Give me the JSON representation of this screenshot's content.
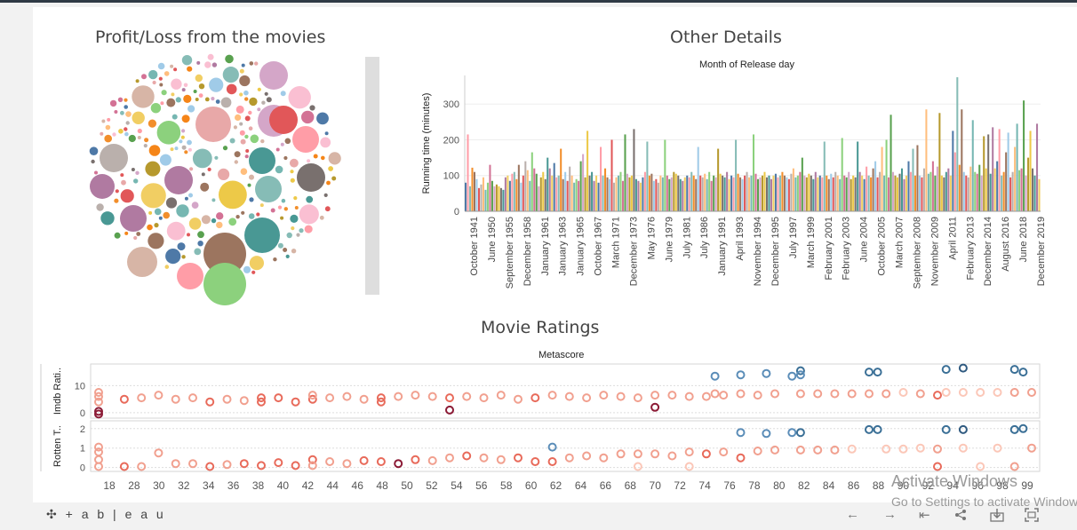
{
  "dashboard": {
    "bubble_title": "Profit/Loss from the movies",
    "details_title": "Other Details",
    "ratings_title": "Movie Ratings"
  },
  "chart_data": [
    {
      "type": "scatter",
      "title": "Profit/Loss from the movies",
      "subtitle": "",
      "note": "packed bubble chart; individual values unlabeled",
      "palette": [
        "#f28e2b",
        "#4e79a7",
        "#e15759",
        "#76b7b2",
        "#59a14f",
        "#edc948",
        "#b07aa1",
        "#ff9da7",
        "#9c755f",
        "#bab0ac",
        "#8cd17d",
        "#d4a6c8",
        "#79706e",
        "#f1ce63",
        "#86bcb6",
        "#a0cbe8",
        "#ffbe7d",
        "#d37295",
        "#b6992d",
        "#499894",
        "#d7b5a6",
        "#fabfd2",
        "#e8a8a8",
        "#f58518"
      ]
    },
    {
      "type": "bar",
      "title": "Month of Release day",
      "ylabel": "Running time (minutes)",
      "ylim": [
        0,
        380
      ],
      "yticks": [
        0,
        100,
        200,
        300
      ],
      "x_tick_labels": [
        "October 1941",
        "June 1950",
        "September 1955",
        "December 1958",
        "January 1961",
        "January 1963",
        "January 1965",
        "October 1967",
        "March 1971",
        "December 1973",
        "May 1976",
        "June 1979",
        "July 1981",
        "July 1986",
        "January 1991",
        "April 1993",
        "November 1994",
        "December 1995",
        "July 1997",
        "March 1999",
        "February 2001",
        "February 2003",
        "June 2004",
        "October 2005",
        "March 2007",
        "September 2008",
        "November 2009",
        "April 2011",
        "February 2013",
        "December 2014",
        "August 2016",
        "June 2018",
        "December 2019"
      ],
      "bar_values": [
        80,
        215,
        70,
        122,
        110,
        90,
        65,
        75,
        95,
        60,
        80,
        130,
        85,
        70,
        75,
        70,
        65,
        60,
        95,
        100,
        85,
        105,
        110,
        90,
        130,
        80,
        100,
        140,
        115,
        85,
        165,
        120,
        105,
        70,
        95,
        110,
        90,
        150,
        120,
        100,
        135,
        95,
        100,
        175,
        90,
        110,
        85,
        125,
        100,
        80,
        90,
        85,
        140,
        160,
        95,
        225,
        100,
        110,
        85,
        100,
        80,
        180,
        100,
        120,
        95,
        90,
        200,
        80,
        95,
        100,
        110,
        85,
        215,
        105,
        95,
        100,
        230,
        90,
        85,
        80,
        95,
        110,
        195,
        100,
        105,
        85,
        90,
        80,
        100,
        95,
        200,
        100,
        90,
        95,
        110,
        105,
        100,
        90,
        85,
        95,
        100,
        95,
        110,
        100,
        90,
        180,
        100,
        95,
        105,
        90,
        110,
        85,
        100,
        95,
        175,
        105,
        100,
        95,
        110,
        90,
        100,
        95,
        200,
        105,
        95,
        90,
        100,
        110,
        95,
        100,
        215,
        105,
        90,
        95,
        100,
        110,
        95,
        100,
        90,
        100,
        105,
        95,
        100,
        110,
        100,
        95,
        90,
        105,
        120,
        95,
        100,
        110,
        150,
        100,
        95,
        105,
        100,
        90,
        110,
        95,
        100,
        95,
        195,
        100,
        90,
        105,
        95,
        110,
        100,
        90,
        205,
        100,
        95,
        110,
        90,
        100,
        95,
        195,
        110,
        100,
        90,
        125,
        100,
        95,
        120,
        140,
        95,
        110,
        180,
        100,
        200,
        95,
        270,
        110,
        100,
        95,
        105,
        120,
        90,
        100,
        140,
        110,
        175,
        100,
        185,
        100,
        95,
        120,
        285,
        105,
        110,
        140,
        100,
        125,
        275,
        100,
        95,
        110,
        120,
        100,
        225,
        165,
        375,
        130,
        285,
        110,
        100,
        95,
        125,
        255,
        110,
        105,
        130,
        100,
        210,
        120,
        215,
        105,
        235,
        120,
        140,
        230,
        100,
        110,
        165,
        220,
        95,
        110,
        180,
        245,
        115,
        120,
        310,
        100,
        150,
        225,
        120,
        100,
        245,
        90
      ],
      "colors": [
        "#4e79a7",
        "#f28e2b",
        "#e15759",
        "#76b7b2",
        "#59a14f",
        "#edc948",
        "#b07aa1",
        "#ff9da7",
        "#9c755f",
        "#bab0ac",
        "#8cd17d",
        "#d4a6c8",
        "#79706e",
        "#f1ce63",
        "#86bcb6",
        "#a0cbe8",
        "#ffbe7d",
        "#d37295",
        "#b6992d",
        "#499894"
      ]
    },
    {
      "type": "scatter",
      "title": "Metascore",
      "xlabel": "",
      "x_ticks": [
        18,
        28,
        30,
        32,
        34,
        36,
        38,
        40,
        42,
        44,
        46,
        48,
        50,
        52,
        54,
        56,
        58,
        60,
        62,
        64,
        66,
        68,
        70,
        72,
        74,
        76,
        78,
        80,
        82,
        84,
        86,
        88,
        90,
        92,
        94,
        96,
        98,
        99
      ],
      "panels": [
        {
          "ylabel": "Imdb Rati..",
          "ylim": [
            -2,
            18
          ],
          "yticks": [
            0,
            10
          ]
        },
        {
          "ylabel": "Rotten T..",
          "ylim": [
            -0.2,
            2.4
          ],
          "yticks": [
            0,
            1,
            2
          ]
        }
      ],
      "imdb_points": [
        {
          "x": 14,
          "y": -0.5,
          "c": "#8b1a35"
        },
        {
          "x": 14,
          "y": 0.5,
          "c": "#8b1a35"
        },
        {
          "x": 14,
          "y": 4,
          "c": "#f1a08f"
        },
        {
          "x": 14,
          "y": 6,
          "c": "#f1a08f"
        },
        {
          "x": 14,
          "y": 7.5,
          "c": "#f1a08f"
        },
        {
          "x": 17,
          "y": 5,
          "c": "#e86a5a"
        },
        {
          "x": 19,
          "y": 5.5,
          "c": "#f1a08f"
        },
        {
          "x": 21,
          "y": 6.5,
          "c": "#f1a08f"
        },
        {
          "x": 23,
          "y": 5,
          "c": "#f1a08f"
        },
        {
          "x": 25,
          "y": 5.5,
          "c": "#f1a08f"
        },
        {
          "x": 27,
          "y": 4,
          "c": "#e86a5a"
        },
        {
          "x": 29,
          "y": 5,
          "c": "#f1a08f"
        },
        {
          "x": 31,
          "y": 4.5,
          "c": "#f1a08f"
        },
        {
          "x": 33,
          "y": 5.5,
          "c": "#e86a5a"
        },
        {
          "x": 33,
          "y": 4,
          "c": "#e86a5a"
        },
        {
          "x": 35,
          "y": 5.5,
          "c": "#e86a5a"
        },
        {
          "x": 37,
          "y": 4,
          "c": "#e86a5a"
        },
        {
          "x": 39,
          "y": 5,
          "c": "#e86a5a"
        },
        {
          "x": 39,
          "y": 6.5,
          "c": "#f1a08f"
        },
        {
          "x": 41,
          "y": 5.5,
          "c": "#f1a08f"
        },
        {
          "x": 43,
          "y": 6,
          "c": "#f1a08f"
        },
        {
          "x": 45,
          "y": 5,
          "c": "#f1a08f"
        },
        {
          "x": 47,
          "y": 4,
          "c": "#e86a5a"
        },
        {
          "x": 47,
          "y": 5.5,
          "c": "#e86a5a"
        },
        {
          "x": 49,
          "y": 6,
          "c": "#f1a08f"
        },
        {
          "x": 51,
          "y": 6.5,
          "c": "#f1a08f"
        },
        {
          "x": 53,
          "y": 6,
          "c": "#f1a08f"
        },
        {
          "x": 55,
          "y": 1,
          "c": "#8b1a35"
        },
        {
          "x": 55,
          "y": 5.5,
          "c": "#e86a5a"
        },
        {
          "x": 57,
          "y": 6,
          "c": "#f1a08f"
        },
        {
          "x": 59,
          "y": 5.5,
          "c": "#f1a08f"
        },
        {
          "x": 61,
          "y": 6.5,
          "c": "#f1a08f"
        },
        {
          "x": 63,
          "y": 5,
          "c": "#f1a08f"
        },
        {
          "x": 65,
          "y": 5.5,
          "c": "#e86a5a"
        },
        {
          "x": 67,
          "y": 6.5,
          "c": "#f1a08f"
        },
        {
          "x": 69,
          "y": 6,
          "c": "#f1a08f"
        },
        {
          "x": 71,
          "y": 5.5,
          "c": "#f1a08f"
        },
        {
          "x": 73,
          "y": 6.5,
          "c": "#f1a08f"
        },
        {
          "x": 75,
          "y": 6,
          "c": "#f1a08f"
        },
        {
          "x": 77,
          "y": 5.5,
          "c": "#f1a08f"
        },
        {
          "x": 79,
          "y": 2,
          "c": "#8b1a35"
        },
        {
          "x": 79,
          "y": 6.5,
          "c": "#f1a08f"
        },
        {
          "x": 81,
          "y": 6.5,
          "c": "#f1a08f"
        },
        {
          "x": 83,
          "y": 6,
          "c": "#f1a08f"
        },
        {
          "x": 85,
          "y": 6,
          "c": "#f1a08f"
        },
        {
          "x": 86,
          "y": 13.5,
          "c": "#5b8db8"
        },
        {
          "x": 86,
          "y": 7,
          "c": "#f1a08f"
        },
        {
          "x": 87,
          "y": 6.5,
          "c": "#f1a08f"
        },
        {
          "x": 89,
          "y": 7,
          "c": "#f1a08f"
        },
        {
          "x": 89,
          "y": 14,
          "c": "#5b8db8"
        },
        {
          "x": 91,
          "y": 6.5,
          "c": "#f1a08f"
        },
        {
          "x": 92,
          "y": 14.5,
          "c": "#5b8db8"
        },
        {
          "x": 93,
          "y": 7,
          "c": "#f1a08f"
        },
        {
          "x": 95,
          "y": 13.5,
          "c": "#5b8db8"
        },
        {
          "x": 96,
          "y": 15.5,
          "c": "#3a6f96"
        },
        {
          "x": 96,
          "y": 14,
          "c": "#5b8db8"
        },
        {
          "x": 96,
          "y": 7,
          "c": "#f1a08f"
        },
        {
          "x": 98,
          "y": 7,
          "c": "#f1a08f"
        },
        {
          "x": 100,
          "y": 7,
          "c": "#f1a08f"
        },
        {
          "x": 102,
          "y": 7,
          "c": "#f1a08f"
        },
        {
          "x": 104,
          "y": 15,
          "c": "#3a6f96"
        },
        {
          "x": 105,
          "y": 15,
          "c": "#3a6f96"
        },
        {
          "x": 104,
          "y": 7,
          "c": "#f1a08f"
        },
        {
          "x": 106,
          "y": 7,
          "c": "#f1a08f"
        },
        {
          "x": 108,
          "y": 7.5,
          "c": "#fbc7b8"
        },
        {
          "x": 110,
          "y": 7,
          "c": "#f1a08f"
        },
        {
          "x": 112,
          "y": 6.5,
          "c": "#e86a5a"
        },
        {
          "x": 113,
          "y": 16,
          "c": "#3a6f96"
        },
        {
          "x": 113,
          "y": 7.5,
          "c": "#fbc7b8"
        },
        {
          "x": 115,
          "y": 16.5,
          "c": "#2f5a80"
        },
        {
          "x": 115,
          "y": 7.5,
          "c": "#fbc7b8"
        },
        {
          "x": 117,
          "y": 7.5,
          "c": "#fbc7b8"
        },
        {
          "x": 119,
          "y": 7.5,
          "c": "#fbc7b8"
        },
        {
          "x": 121,
          "y": 16,
          "c": "#3a6f96"
        },
        {
          "x": 122,
          "y": 15,
          "c": "#3a6f96"
        },
        {
          "x": 121,
          "y": 7.5,
          "c": "#f1a08f"
        },
        {
          "x": 123,
          "y": 7.5,
          "c": "#f1a08f"
        }
      ],
      "rotten_points": [
        {
          "x": 14,
          "y": 0.05,
          "c": "#f1a08f"
        },
        {
          "x": 14,
          "y": 0.4,
          "c": "#f1a08f"
        },
        {
          "x": 14,
          "y": 0.8,
          "c": "#f1a08f"
        },
        {
          "x": 14,
          "y": 1.05,
          "c": "#f1a08f"
        },
        {
          "x": 17,
          "y": 0.05,
          "c": "#e86a5a"
        },
        {
          "x": 19,
          "y": 0.05,
          "c": "#f1a08f"
        },
        {
          "x": 21,
          "y": 0.75,
          "c": "#f1a08f"
        },
        {
          "x": 23,
          "y": 0.2,
          "c": "#f1a08f"
        },
        {
          "x": 25,
          "y": 0.2,
          "c": "#f1a08f"
        },
        {
          "x": 27,
          "y": 0.05,
          "c": "#e86a5a"
        },
        {
          "x": 29,
          "y": 0.15,
          "c": "#f1a08f"
        },
        {
          "x": 31,
          "y": 0.2,
          "c": "#e86a5a"
        },
        {
          "x": 33,
          "y": 0.1,
          "c": "#e86a5a"
        },
        {
          "x": 35,
          "y": 0.25,
          "c": "#e86a5a"
        },
        {
          "x": 37,
          "y": 0.1,
          "c": "#e86a5a"
        },
        {
          "x": 39,
          "y": 0.4,
          "c": "#e86a5a"
        },
        {
          "x": 39,
          "y": 0.1,
          "c": "#f1a08f"
        },
        {
          "x": 41,
          "y": 0.3,
          "c": "#f1a08f"
        },
        {
          "x": 43,
          "y": 0.2,
          "c": "#f1a08f"
        },
        {
          "x": 45,
          "y": 0.35,
          "c": "#e86a5a"
        },
        {
          "x": 47,
          "y": 0.3,
          "c": "#e86a5a"
        },
        {
          "x": 49,
          "y": 0.2,
          "c": "#8b1a35"
        },
        {
          "x": 51,
          "y": 0.4,
          "c": "#e86a5a"
        },
        {
          "x": 53,
          "y": 0.35,
          "c": "#f1a08f"
        },
        {
          "x": 55,
          "y": 0.5,
          "c": "#f1a08f"
        },
        {
          "x": 57,
          "y": 0.6,
          "c": "#e86a5a"
        },
        {
          "x": 59,
          "y": 0.5,
          "c": "#f1a08f"
        },
        {
          "x": 61,
          "y": 0.4,
          "c": "#f1a08f"
        },
        {
          "x": 63,
          "y": 0.5,
          "c": "#e86a5a"
        },
        {
          "x": 65,
          "y": 0.3,
          "c": "#e86a5a"
        },
        {
          "x": 67,
          "y": 1.05,
          "c": "#5b8db8"
        },
        {
          "x": 67,
          "y": 0.3,
          "c": "#e86a5a"
        },
        {
          "x": 69,
          "y": 0.5,
          "c": "#f1a08f"
        },
        {
          "x": 71,
          "y": 0.6,
          "c": "#f1a08f"
        },
        {
          "x": 73,
          "y": 0.5,
          "c": "#f1a08f"
        },
        {
          "x": 75,
          "y": 0.7,
          "c": "#f1a08f"
        },
        {
          "x": 77,
          "y": 0.7,
          "c": "#f1a08f"
        },
        {
          "x": 77,
          "y": 0.05,
          "c": "#fbc7b8"
        },
        {
          "x": 79,
          "y": 0.7,
          "c": "#f1a08f"
        },
        {
          "x": 81,
          "y": 0.6,
          "c": "#f1a08f"
        },
        {
          "x": 83,
          "y": 0.8,
          "c": "#f1a08f"
        },
        {
          "x": 83,
          "y": 0.05,
          "c": "#fbc7b8"
        },
        {
          "x": 85,
          "y": 0.7,
          "c": "#e86a5a"
        },
        {
          "x": 87,
          "y": 0.8,
          "c": "#f1a08f"
        },
        {
          "x": 89,
          "y": 1.8,
          "c": "#5b8db8"
        },
        {
          "x": 89,
          "y": 0.5,
          "c": "#e86a5a"
        },
        {
          "x": 91,
          "y": 0.85,
          "c": "#f1a08f"
        },
        {
          "x": 92,
          "y": 1.75,
          "c": "#5b8db8"
        },
        {
          "x": 93,
          "y": 0.9,
          "c": "#f1a08f"
        },
        {
          "x": 95,
          "y": 1.8,
          "c": "#5b8db8"
        },
        {
          "x": 96,
          "y": 1.8,
          "c": "#3a6f96"
        },
        {
          "x": 96,
          "y": 0.9,
          "c": "#f1a08f"
        },
        {
          "x": 98,
          "y": 0.9,
          "c": "#f1a08f"
        },
        {
          "x": 100,
          "y": 0.9,
          "c": "#f1a08f"
        },
        {
          "x": 102,
          "y": 0.95,
          "c": "#fbc7b8"
        },
        {
          "x": 104,
          "y": 1.95,
          "c": "#3a6f96"
        },
        {
          "x": 105,
          "y": 1.95,
          "c": "#3a6f96"
        },
        {
          "x": 106,
          "y": 0.95,
          "c": "#fbc7b8"
        },
        {
          "x": 108,
          "y": 0.95,
          "c": "#fbc7b8"
        },
        {
          "x": 110,
          "y": 1.0,
          "c": "#fbc7b8"
        },
        {
          "x": 112,
          "y": 0.05,
          "c": "#e86a5a"
        },
        {
          "x": 112,
          "y": 0.95,
          "c": "#f1a08f"
        },
        {
          "x": 113,
          "y": 1.95,
          "c": "#3a6f96"
        },
        {
          "x": 115,
          "y": 1.95,
          "c": "#2f5a80"
        },
        {
          "x": 115,
          "y": 1.0,
          "c": "#fbc7b8"
        },
        {
          "x": 117,
          "y": 0.05,
          "c": "#fbc7b8"
        },
        {
          "x": 119,
          "y": 1.0,
          "c": "#fbc7b8"
        },
        {
          "x": 121,
          "y": 1.95,
          "c": "#3a6f96"
        },
        {
          "x": 122,
          "y": 2.0,
          "c": "#3a6f96"
        },
        {
          "x": 121,
          "y": 0.05,
          "c": "#f1a08f"
        },
        {
          "x": 123,
          "y": 1.0,
          "c": "#f1a08f"
        }
      ]
    }
  ],
  "footer": {
    "logo_text": "+ a b | e a u",
    "controls": [
      "undo-icon",
      "redo-icon",
      "revert-icon",
      "share-icon",
      "download-icon",
      "fullscreen-icon"
    ]
  },
  "watermark": {
    "line1": "Activate Windows",
    "line2": "Go to Settings to activate Windows."
  }
}
